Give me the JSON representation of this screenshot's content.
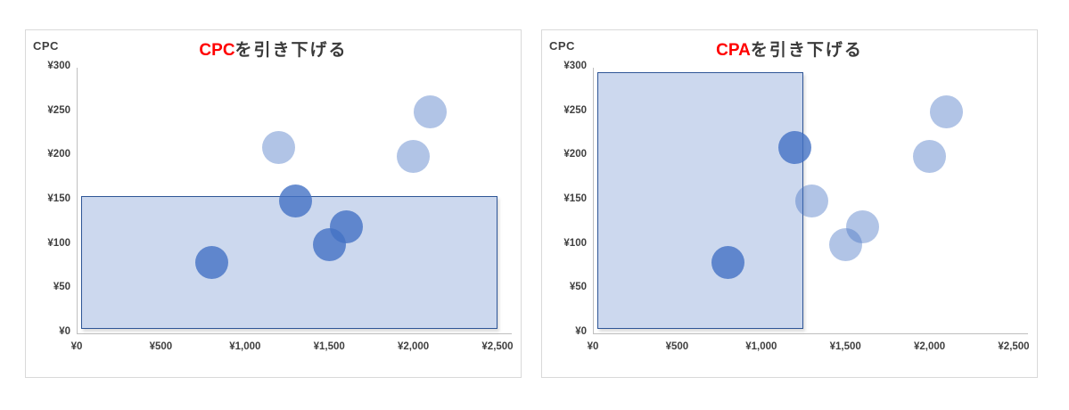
{
  "colors": {
    "bubble_base": "#4472c4",
    "bubble_dark": "rgba(68,114,196,0.80)",
    "bubble_light": "rgba(68,114,196,0.42)",
    "region_fill": "#ccd8ee",
    "region_border": "#2e5596",
    "axis_line": "#bfbfbf",
    "panel_border": "#d9d9d9",
    "tick_text": "#404040",
    "title_text": "#3b3b3b",
    "title_highlight": "#ff0000"
  },
  "chart_data": [
    {
      "type": "scatter",
      "subtype": "bubble",
      "title": "CPCを引き下げる",
      "title_highlight": "CPC",
      "title_rest": "を引き下げる",
      "y_axis_title": "CPC",
      "xlim": [
        0,
        2500
      ],
      "ylim": [
        0,
        300
      ],
      "grid": false,
      "x_tick_values": [
        0,
        500,
        1000,
        1500,
        2000,
        2500
      ],
      "x_tick_labels": [
        "¥0",
        "¥500",
        "¥1,000",
        "¥1,500",
        "¥2,000",
        "¥2,500"
      ],
      "y_tick_values": [
        0,
        50,
        100,
        150,
        200,
        250,
        300
      ],
      "y_tick_labels": [
        "¥0",
        "¥50",
        "¥100",
        "¥150",
        "¥200",
        "¥250",
        "¥300"
      ],
      "points": [
        {
          "x": 800,
          "y": 80,
          "level": "dark"
        },
        {
          "x": 1200,
          "y": 210,
          "level": "light"
        },
        {
          "x": 1300,
          "y": 150,
          "level": "dark"
        },
        {
          "x": 1500,
          "y": 100,
          "level": "dark"
        },
        {
          "x": 1600,
          "y": 120,
          "level": "dark"
        },
        {
          "x": 2000,
          "y": 200,
          "level": "light"
        },
        {
          "x": 2100,
          "y": 250,
          "level": "light"
        }
      ],
      "highlight_region": {
        "x0": 25,
        "x1": 2500,
        "y0": 5,
        "y1": 155
      }
    },
    {
      "type": "scatter",
      "subtype": "bubble",
      "title": "CPAを引き下げる",
      "title_highlight": "CPA",
      "title_rest": "を引き下げる",
      "y_axis_title": "CPC",
      "xlim": [
        0,
        2500
      ],
      "ylim": [
        0,
        300
      ],
      "grid": false,
      "x_tick_values": [
        0,
        500,
        1000,
        1500,
        2000,
        2500
      ],
      "x_tick_labels": [
        "¥0",
        "¥500",
        "¥1,000",
        "¥1,500",
        "¥2,000",
        "¥2,500"
      ],
      "y_tick_values": [
        0,
        50,
        100,
        150,
        200,
        250,
        300
      ],
      "y_tick_labels": [
        "¥0",
        "¥50",
        "¥100",
        "¥150",
        "¥200",
        "¥250",
        "¥300"
      ],
      "points": [
        {
          "x": 800,
          "y": 80,
          "level": "dark"
        },
        {
          "x": 1200,
          "y": 210,
          "level": "dark"
        },
        {
          "x": 1300,
          "y": 150,
          "level": "light"
        },
        {
          "x": 1500,
          "y": 100,
          "level": "light"
        },
        {
          "x": 1600,
          "y": 120,
          "level": "light"
        },
        {
          "x": 2000,
          "y": 200,
          "level": "light"
        },
        {
          "x": 2100,
          "y": 250,
          "level": "light"
        }
      ],
      "highlight_region": {
        "x0": 25,
        "x1": 1250,
        "y0": 5,
        "y1": 295
      }
    }
  ]
}
